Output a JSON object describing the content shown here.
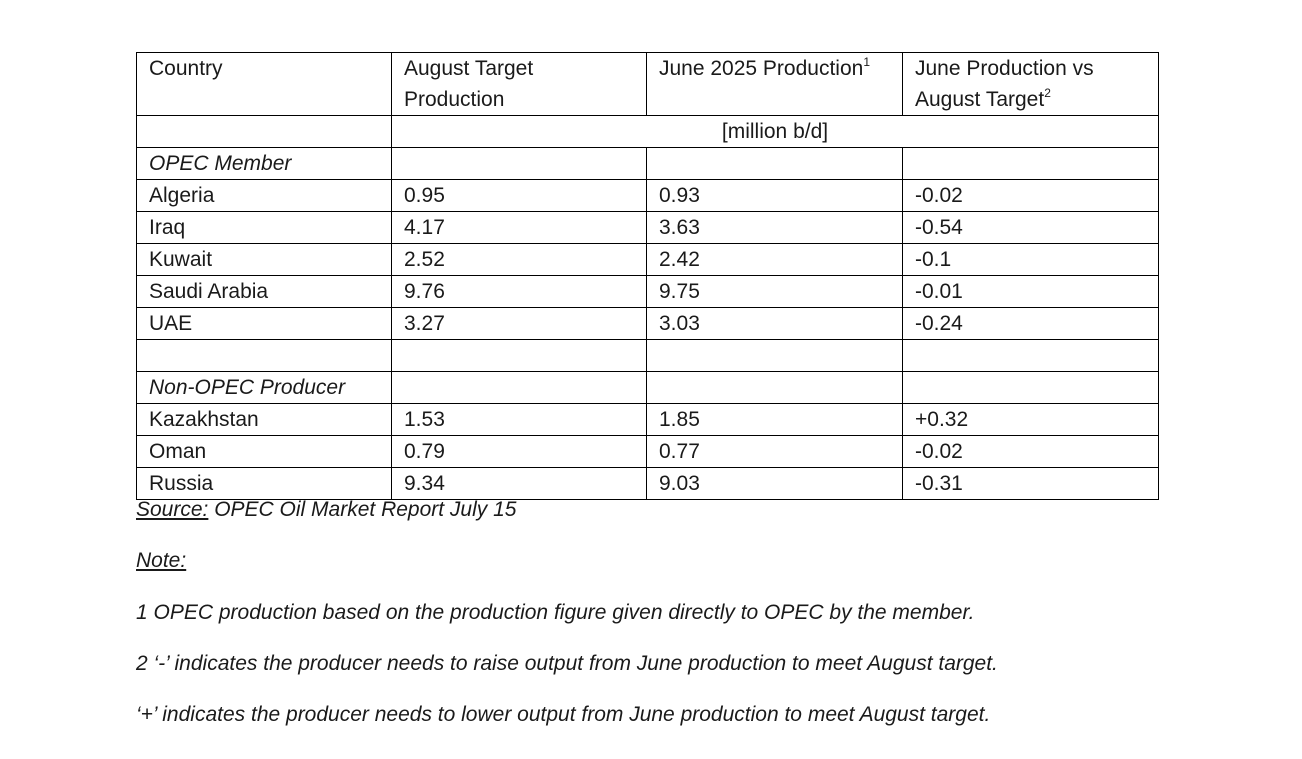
{
  "table": {
    "headers": {
      "country": "Country",
      "august_target": "August Target Production",
      "june_production": "June 2025 Production",
      "june_production_sup": "1",
      "difference": "June Production vs August Target",
      "difference_sup": "2"
    },
    "unit": "[million b/d]",
    "groups": [
      {
        "label": "OPEC Member",
        "rows": [
          {
            "country": "Algeria",
            "august_target": "0.95",
            "june_production": "0.93",
            "difference": "-0.02"
          },
          {
            "country": "Iraq",
            "august_target": "4.17",
            "june_production": "3.63",
            "difference": "-0.54"
          },
          {
            "country": "Kuwait",
            "august_target": "2.52",
            "june_production": "2.42",
            "difference": "-0.1"
          },
          {
            "country": "Saudi Arabia",
            "august_target": "9.76",
            "june_production": "9.75",
            "difference": "-0.01"
          },
          {
            "country": "UAE",
            "august_target": "3.27",
            "june_production": "3.03",
            "difference": "-0.24"
          }
        ]
      },
      {
        "label": "Non-OPEC Producer",
        "rows": [
          {
            "country": "Kazakhstan",
            "august_target": "1.53",
            "june_production": "1.85",
            "difference": "+0.32"
          },
          {
            "country": "Oman",
            "august_target": "0.79",
            "june_production": "0.77",
            "difference": "-0.02"
          },
          {
            "country": "Russia",
            "august_target": "9.34",
            "june_production": "9.03",
            "difference": "-0.31"
          }
        ]
      }
    ]
  },
  "source": {
    "label": "Source:",
    "text": " OPEC Oil Market Report July 15"
  },
  "notes": {
    "heading": "Note:",
    "items": [
      "1 OPEC production based on the production figure given directly to OPEC by the member.",
      "2 ‘-’ indicates the producer needs to raise output from June production to meet August target.",
      "‘+’ indicates the producer needs to lower output from June production to meet August target."
    ]
  }
}
